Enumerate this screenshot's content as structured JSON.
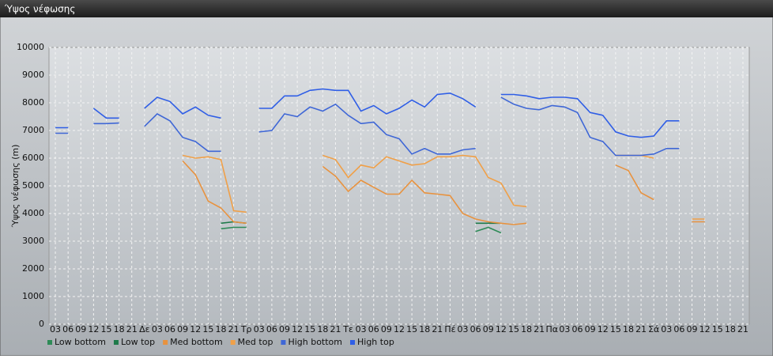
{
  "chart_data": {
    "type": "line",
    "title": "Ύψος νέφωσης",
    "y_label": "Ύψος νέφωσης (m)",
    "categories": [
      "03",
      "06",
      "09",
      "12",
      "15",
      "18",
      "21",
      "Δε",
      "03",
      "06",
      "09",
      "12",
      "15",
      "18",
      "21",
      "Τρ",
      "03",
      "06",
      "09",
      "12",
      "15",
      "18",
      "21",
      "Τε",
      "03",
      "06",
      "09",
      "12",
      "15",
      "18",
      "21",
      "Πέ",
      "03",
      "06",
      "09",
      "12",
      "15",
      "18",
      "21",
      "Πα",
      "03",
      "06",
      "09",
      "12",
      "15",
      "18",
      "21",
      "Σά",
      "03",
      "06",
      "09",
      "12",
      "15",
      "18",
      "21"
    ],
    "ylim": [
      0,
      10000
    ],
    "yticks": [
      0,
      1000,
      2000,
      3000,
      4000,
      5000,
      6000,
      7000,
      8000,
      9000,
      10000
    ],
    "grid": true,
    "series": [
      {
        "name": "Low bottom",
        "color": "#2e8b57",
        "values": [
          null,
          null,
          null,
          null,
          null,
          null,
          null,
          null,
          null,
          null,
          null,
          null,
          null,
          3450,
          3500,
          3500,
          null,
          null,
          null,
          null,
          null,
          null,
          null,
          null,
          null,
          null,
          null,
          null,
          null,
          null,
          null,
          null,
          null,
          3350,
          3500,
          3300,
          null,
          null,
          null,
          null,
          null,
          null,
          null,
          null,
          null,
          null,
          null,
          null,
          null,
          null,
          null,
          null,
          null,
          null,
          null
        ]
      },
      {
        "name": "Low top",
        "color": "#1e7a4a",
        "values": [
          null,
          null,
          null,
          null,
          null,
          null,
          null,
          null,
          null,
          null,
          null,
          null,
          null,
          3650,
          3700,
          3650,
          null,
          null,
          null,
          null,
          null,
          null,
          null,
          null,
          null,
          null,
          null,
          null,
          null,
          null,
          null,
          null,
          null,
          3650,
          3650,
          3650,
          null,
          null,
          null,
          null,
          null,
          null,
          null,
          null,
          null,
          null,
          null,
          null,
          null,
          null,
          null,
          null,
          null,
          null,
          null
        ]
      },
      {
        "name": "Med bottom",
        "color": "#e8923e",
        "values": [
          null,
          null,
          null,
          null,
          null,
          null,
          null,
          null,
          null,
          null,
          5900,
          5400,
          4450,
          4200,
          3700,
          3650,
          null,
          null,
          null,
          null,
          null,
          5700,
          5350,
          4800,
          5200,
          4950,
          4700,
          4700,
          5200,
          4750,
          4700,
          4650,
          4000,
          3800,
          3700,
          3650,
          3600,
          3650,
          null,
          null,
          null,
          null,
          null,
          null,
          5750,
          5550,
          4750,
          4500,
          null,
          null,
          3700,
          3700,
          null,
          null,
          null
        ]
      },
      {
        "name": "Med top",
        "color": "#f0a048",
        "values": [
          null,
          null,
          null,
          null,
          null,
          null,
          null,
          null,
          null,
          null,
          6100,
          6000,
          6050,
          5950,
          4100,
          4050,
          null,
          null,
          null,
          null,
          null,
          6100,
          5950,
          5300,
          5750,
          5650,
          6050,
          5900,
          5750,
          5800,
          6050,
          6050,
          6100,
          6050,
          5300,
          5100,
          4300,
          4250,
          null,
          null,
          null,
          null,
          null,
          null,
          6100,
          6100,
          6100,
          6000,
          null,
          null,
          3800,
          3800,
          null,
          null,
          null
        ]
      },
      {
        "name": "High bottom",
        "color": "#3f67d6",
        "values": [
          6900,
          6900,
          null,
          7250,
          7250,
          7270,
          null,
          7150,
          7600,
          7350,
          6750,
          6600,
          6250,
          6250,
          null,
          null,
          6950,
          7000,
          7600,
          7500,
          7850,
          7700,
          7950,
          7550,
          7250,
          7300,
          6850,
          6700,
          6150,
          6350,
          6150,
          6150,
          6300,
          6350,
          null,
          8200,
          7950,
          7800,
          7750,
          7900,
          7850,
          7650,
          6750,
          6600,
          6100,
          6100,
          6100,
          6150,
          6350,
          6350,
          null,
          null,
          null,
          null,
          null
        ]
      },
      {
        "name": "High top",
        "color": "#2f5ee6",
        "values": [
          7100,
          7100,
          null,
          7800,
          7450,
          7450,
          null,
          7800,
          8200,
          8050,
          7600,
          7850,
          7550,
          7450,
          null,
          null,
          7800,
          7800,
          8250,
          8250,
          8450,
          8500,
          8450,
          8450,
          7700,
          7900,
          7600,
          7800,
          8100,
          7850,
          8300,
          8350,
          8150,
          7850,
          null,
          8300,
          8300,
          8250,
          8150,
          8200,
          8200,
          8150,
          7650,
          7550,
          6950,
          6800,
          6750,
          6800,
          7350,
          7350,
          null,
          null,
          null,
          null,
          null
        ]
      }
    ]
  }
}
